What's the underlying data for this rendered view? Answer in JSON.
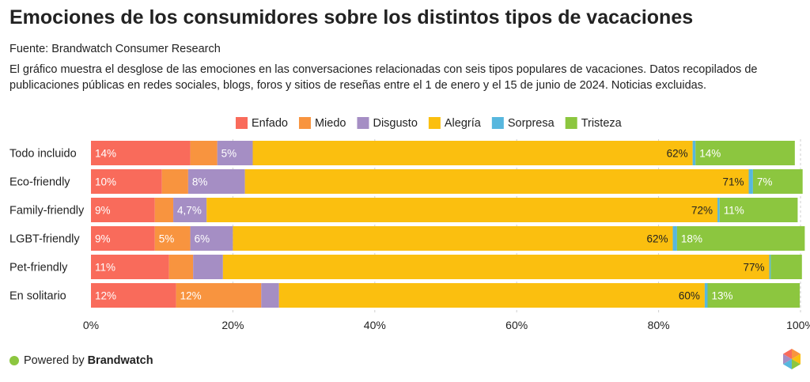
{
  "title": "Emociones de los consumidores sobre los distintos tipos de vacaciones",
  "source": "Fuente: Brandwatch Consumer Research",
  "description": "El gráfico muestra el desglose de las emociones en las conversaciones relacionadas con seis tipos populares de vacaciones. Datos recopilados de publicaciones públicas en redes sociales, blogs, foros y sitios de reseñas entre el 1 de enero y el 15 de junio de 2024. Noticias excluidas.",
  "footer": {
    "prefix": "Powered by",
    "brand": "Brandwatch",
    "dot_color": "#8cc63f"
  },
  "logo_icon": "brandwatch-hexagon-icon",
  "chart_data": {
    "type": "bar",
    "orientation": "horizontal",
    "stacked": true,
    "categories": [
      "Todo incluido",
      "Eco-friendly",
      "Family-friendly",
      "LGBT-friendly",
      "Pet-friendly",
      "En solitario"
    ],
    "series": [
      {
        "name": "Enfado",
        "color": "#f96b5b",
        "values": [
          14,
          10,
          9,
          9,
          11,
          12
        ],
        "labels": [
          "14%",
          "10%",
          "9%",
          "9%",
          "11%",
          "12%"
        ]
      },
      {
        "name": "Miedo",
        "color": "#f8943f",
        "values": [
          3.8,
          3.7,
          2.6,
          5,
          3.4,
          12
        ],
        "labels": [
          "",
          "",
          "",
          "5%",
          "",
          "12%"
        ]
      },
      {
        "name": "Disgusto",
        "color": "#a58ec4",
        "values": [
          5,
          8,
          4.7,
          6,
          4.2,
          2.5
        ],
        "labels": [
          "5%",
          "8%",
          "4,7%",
          "6%",
          "",
          ""
        ]
      },
      {
        "name": "Alegría",
        "color": "#fbbf0f",
        "values": [
          62,
          71,
          72,
          62,
          77,
          60
        ],
        "labels": [
          "62%",
          "71%",
          "72%",
          "62%",
          "77%",
          "60%"
        ]
      },
      {
        "name": "Sorpresa",
        "color": "#57b7de",
        "values": [
          0.4,
          0.6,
          0.3,
          0.6,
          0.2,
          0.4
        ],
        "labels": [
          "",
          "",
          "",
          "",
          "",
          ""
        ]
      },
      {
        "name": "Tristeza",
        "color": "#8cc63f",
        "values": [
          14,
          7,
          11,
          18,
          4.4,
          13
        ],
        "labels": [
          "14%",
          "7%",
          "11%",
          "18%",
          "",
          "13%"
        ]
      }
    ],
    "xlim": [
      0,
      100
    ],
    "xticks": [
      0,
      20,
      40,
      60,
      80,
      100
    ],
    "xtick_labels": [
      "0%",
      "20%",
      "40%",
      "60%",
      "80%",
      "100%"
    ],
    "legend_position": "top-center",
    "grid": "vertical-dashed"
  }
}
